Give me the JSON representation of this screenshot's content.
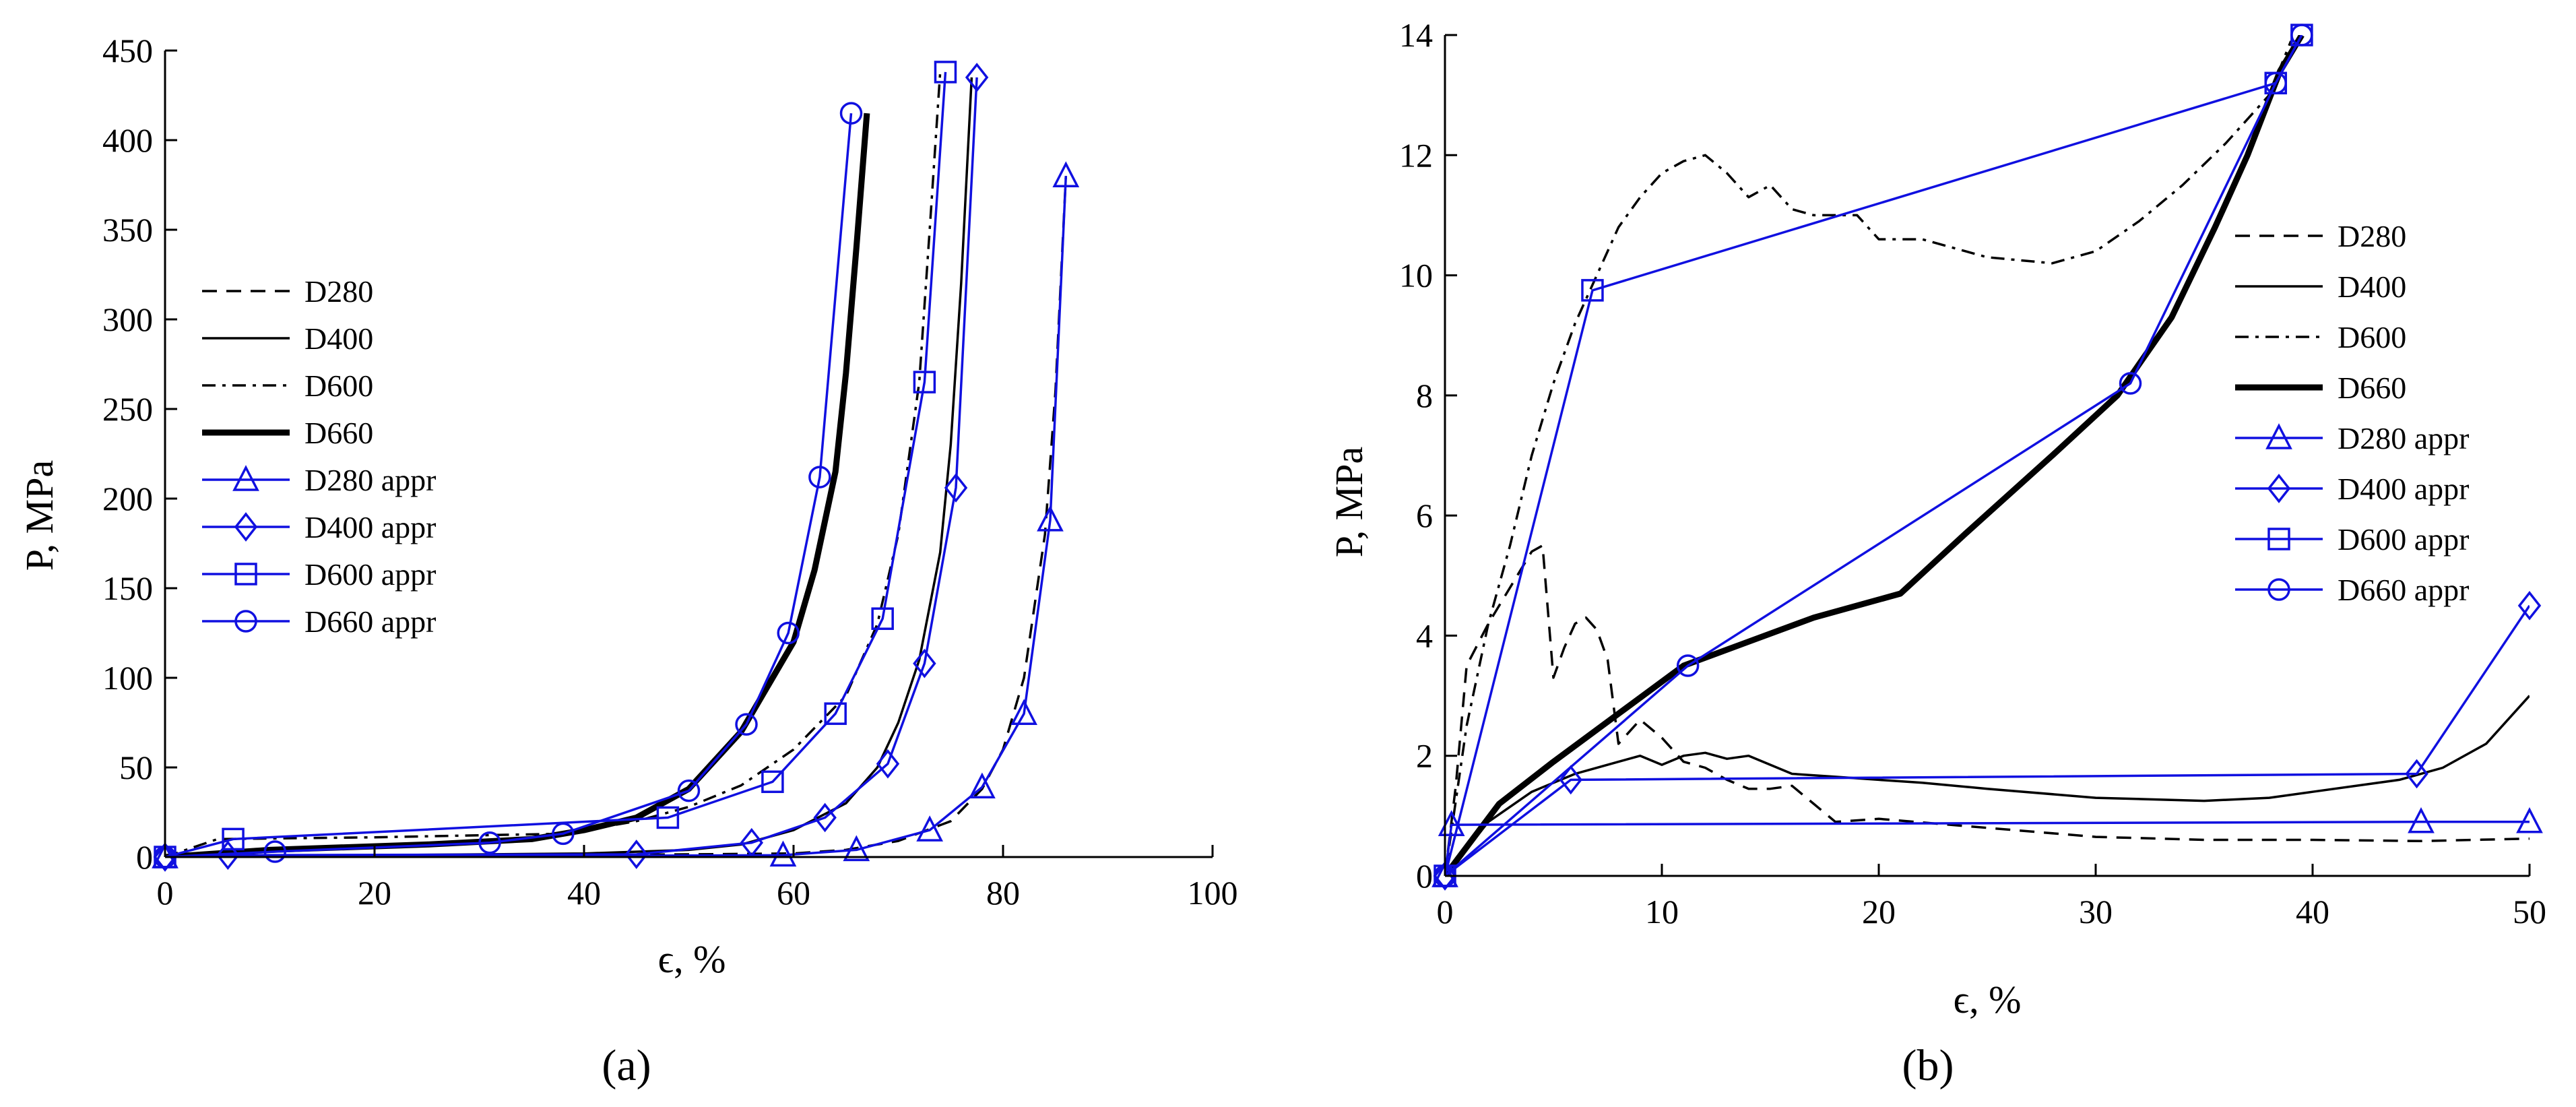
{
  "colors": {
    "measured": "#000000",
    "approx": "#1010e0",
    "fit_dashed": "#ff0000",
    "axis": "#000000",
    "background": "#ffffff"
  },
  "chart_data": [
    {
      "type": "line",
      "panel_label": "(a)",
      "xlabel": "ϵ, %",
      "ylabel": "P, MPa",
      "xlim": [
        0,
        100
      ],
      "ylim": [
        0,
        450
      ],
      "xticks": [
        "0",
        "20",
        "40",
        "60",
        "80",
        "100"
      ],
      "yticks": [
        "0",
        "50",
        "100",
        "150",
        "200",
        "250",
        "300",
        "350",
        "400",
        "450"
      ],
      "grid": false,
      "legend_position": "middle-left",
      "series": [
        {
          "name": "D280",
          "style": "dashed",
          "x": [
            0,
            10,
            30,
            50,
            60,
            65,
            70,
            75,
            78,
            80,
            82,
            84,
            85,
            86
          ],
          "y": [
            0,
            0.5,
            0.8,
            1.5,
            2,
            4,
            9,
            20,
            38,
            60,
            100,
            180,
            260,
            380
          ]
        },
        {
          "name": "D400",
          "style": "solid",
          "x": [
            0,
            20,
            40,
            50,
            55,
            60,
            65,
            68,
            70,
            72,
            74,
            75,
            76,
            77
          ],
          "y": [
            0,
            1,
            2,
            4,
            7,
            15,
            30,
            50,
            75,
            110,
            170,
            230,
            320,
            435
          ]
        },
        {
          "name": "D600",
          "style": "dashdot",
          "x": [
            0,
            5,
            20,
            38,
            45,
            50,
            55,
            60,
            65,
            68,
            70,
            72,
            73,
            74
          ],
          "y": [
            0,
            10,
            11,
            13,
            20,
            28,
            40,
            60,
            90,
            130,
            180,
            265,
            350,
            438
          ]
        },
        {
          "name": "D660",
          "style": "thick",
          "x": [
            0,
            10,
            25,
            35,
            40,
            45,
            50,
            55,
            60,
            62,
            64,
            65,
            66,
            67
          ],
          "y": [
            0,
            4,
            7,
            10,
            15,
            22,
            38,
            70,
            120,
            160,
            215,
            270,
            340,
            415
          ]
        },
        {
          "name": "D280 appr",
          "marker": "triangle",
          "x": [
            0,
            59,
            66,
            73,
            78,
            82,
            84.5,
            86
          ],
          "y": [
            0,
            1,
            4,
            15,
            39,
            80,
            188,
            380
          ]
        },
        {
          "name": "D400 appr",
          "marker": "diamond",
          "x": [
            0,
            6,
            45,
            56,
            63,
            69,
            72.5,
            75.5,
            77.5
          ],
          "y": [
            0,
            1,
            1.5,
            8,
            22,
            52,
            108,
            206,
            435
          ]
        },
        {
          "name": "D600 appr",
          "marker": "square",
          "x": [
            0,
            6.5,
            48,
            58,
            64,
            68.5,
            72.5,
            74.5
          ],
          "y": [
            0,
            10,
            22,
            42,
            80,
            133,
            265,
            438
          ]
        },
        {
          "name": "D660 appr",
          "marker": "circle",
          "x": [
            0,
            10.5,
            31,
            38,
            50,
            55.5,
            59.5,
            62.5,
            65.5
          ],
          "y": [
            0,
            3,
            8,
            13,
            37,
            74,
            125,
            212,
            415
          ]
        }
      ]
    },
    {
      "type": "line",
      "panel_label": "(b)",
      "xlabel": "ϵ, %",
      "ylabel": "P, MPa",
      "xlim": [
        0,
        50
      ],
      "ylim": [
        0,
        14
      ],
      "xticks": [
        "0",
        "10",
        "20",
        "30",
        "40",
        "50"
      ],
      "yticks": [
        "0",
        "2",
        "4",
        "6",
        "8",
        "10",
        "12",
        "14"
      ],
      "grid": false,
      "legend_position": "middle-right",
      "series": [
        {
          "name": "D280",
          "style": "dashed",
          "x": [
            0,
            0.5,
            1,
            2,
            3,
            4,
            4.5,
            5,
            5.5,
            6,
            6.5,
            7,
            7.5,
            8,
            9,
            10,
            11,
            12,
            13,
            14,
            15,
            16,
            17,
            18,
            20,
            25,
            30,
            35,
            40,
            45,
            50
          ],
          "y": [
            0,
            1.5,
            3.5,
            4.2,
            4.8,
            5.4,
            5.5,
            3.3,
            3.8,
            4.2,
            4.3,
            4.1,
            3.6,
            2.2,
            2.6,
            2.3,
            1.9,
            1.8,
            1.6,
            1.45,
            1.45,
            1.5,
            1.2,
            0.9,
            0.95,
            0.8,
            0.65,
            0.6,
            0.6,
            0.58,
            0.62
          ]
        },
        {
          "name": "D400",
          "style": "solid",
          "x": [
            0,
            2,
            4,
            6,
            8,
            9,
            10,
            11,
            12,
            13,
            14,
            15,
            16,
            18,
            20,
            22,
            25,
            30,
            35,
            38,
            40,
            44,
            46,
            48,
            50
          ],
          "y": [
            0,
            0.9,
            1.4,
            1.7,
            1.9,
            2.0,
            1.85,
            2.0,
            2.05,
            1.95,
            2.0,
            1.85,
            1.7,
            1.65,
            1.6,
            1.55,
            1.45,
            1.3,
            1.25,
            1.3,
            1.4,
            1.6,
            1.8,
            2.2,
            3.0
          ]
        },
        {
          "name": "D600",
          "style": "dashdot",
          "x": [
            0,
            1,
            2,
            3,
            4,
            5,
            6,
            7,
            8,
            9,
            10,
            11,
            12,
            13,
            14,
            15,
            16,
            17,
            18,
            19,
            20,
            22,
            25,
            28,
            30,
            32,
            34,
            36,
            38,
            39
          ],
          "y": [
            0,
            2.5,
            4.2,
            5.5,
            7.0,
            8.2,
            9.2,
            10.0,
            10.8,
            11.3,
            11.7,
            11.9,
            12.0,
            11.7,
            11.3,
            11.5,
            11.1,
            11.0,
            11.0,
            11.0,
            10.6,
            10.6,
            10.3,
            10.2,
            10.4,
            10.9,
            11.5,
            12.2,
            13.0,
            13.9
          ]
        },
        {
          "name": "D660",
          "style": "thick",
          "x": [
            0,
            2.5,
            5,
            8,
            11,
            14,
            17,
            21,
            24,
            28,
            31,
            33.5,
            35.5,
            37,
            38.5,
            39.5
          ],
          "y": [
            0,
            1.2,
            1.9,
            2.7,
            3.5,
            3.9,
            4.3,
            4.7,
            5.7,
            7.0,
            8.0,
            9.3,
            10.8,
            12.0,
            13.4,
            14.0
          ]
        },
        {
          "name": "D280 appr",
          "marker": "triangle",
          "x": [
            0,
            0.3,
            45,
            50
          ],
          "y": [
            0,
            0.85,
            0.9,
            0.9
          ]
        },
        {
          "name": "D400 appr",
          "marker": "diamond",
          "x": [
            0,
            5.8,
            44.8,
            50
          ],
          "y": [
            0,
            1.6,
            1.7,
            4.5
          ]
        },
        {
          "name": "D600 appr",
          "marker": "square",
          "x": [
            0,
            6.8,
            38.3,
            39.5
          ],
          "y": [
            0,
            9.75,
            13.2,
            14.0
          ]
        },
        {
          "name": "D660 appr",
          "marker": "circle",
          "x": [
            0,
            11.2,
            31.6,
            38.3,
            39.5
          ],
          "y": [
            0,
            3.5,
            8.2,
            13.2,
            14.0
          ]
        }
      ]
    }
  ]
}
